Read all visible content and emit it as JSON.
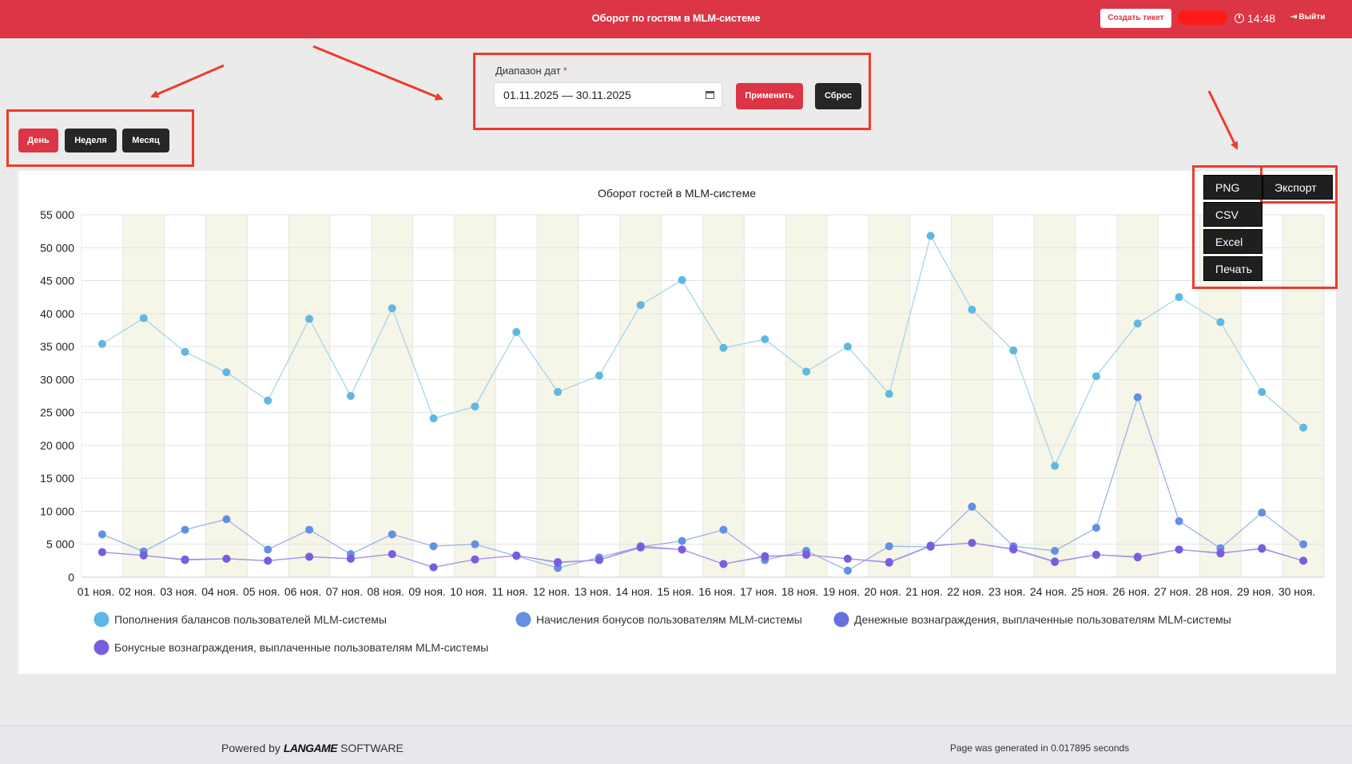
{
  "header": {
    "title": "Оборот по гостям в MLM-системе",
    "ticket_label": "Создать тикет",
    "time": "14:48",
    "logout_label": "Выйти"
  },
  "period": {
    "day_label": "День",
    "week_label": "Неделя",
    "month_label": "Месяц"
  },
  "date_range": {
    "label": "Диапазон дат",
    "required_mark": "*",
    "value": "01.11.2025 — 30.11.2025",
    "apply_label": "Применить",
    "reset_label": "Сброс"
  },
  "export": {
    "png_label": "PNG",
    "export_label": "Экспорт",
    "csv_label": "CSV",
    "excel_label": "Excel",
    "print_label": "Печать"
  },
  "footer": {
    "powered_prefix": "Powered by",
    "brand": "LANGAME",
    "brand_suffix": "SOFTWARE",
    "generated": "Page was generated in 0.017895 seconds"
  },
  "colors": {
    "accent": "#dc3545",
    "annotation": "#ee3b2d",
    "band": "#f5f5e8"
  },
  "chart_data": {
    "type": "line",
    "title": "Оборот гостей в MLM-системе",
    "categories": [
      "01 ноя.",
      "02 ноя.",
      "03 ноя.",
      "04 ноя.",
      "05 ноя.",
      "06 ноя.",
      "07 ноя.",
      "08 ноя.",
      "09 ноя.",
      "10 ноя.",
      "11 ноя.",
      "12 ноя.",
      "13 ноя.",
      "14 ноя.",
      "15 ноя.",
      "16 ноя.",
      "17 ноя.",
      "18 ноя.",
      "19 ноя.",
      "20 ноя.",
      "21 ноя.",
      "22 ноя.",
      "23 ноя.",
      "24 ноя.",
      "25 ноя.",
      "26 ноя.",
      "27 ноя.",
      "28 ноя.",
      "29 ноя.",
      "30 ноя."
    ],
    "ylim": [
      0,
      55000
    ],
    "yticks": [
      "0",
      "5 000",
      "10 000",
      "15 000",
      "20 000",
      "25 000",
      "30 000",
      "35 000",
      "40 000",
      "45 000",
      "50 000",
      "55 000"
    ],
    "grid": true,
    "legend_position": "bottom",
    "series": [
      {
        "name": "Пополнения балансов пользователей MLM-системы",
        "color": "#5fb8e0",
        "line_color": "#9fd3ea",
        "values": [
          35400,
          39300,
          34200,
          31100,
          26800,
          39200,
          27500,
          40800,
          24100,
          25900,
          37200,
          28100,
          30600,
          41300,
          45100,
          34800,
          36100,
          31200,
          35000,
          27800,
          51800,
          40600,
          34400,
          16900,
          30500,
          38500,
          42500,
          38700,
          28100,
          22700
        ]
      },
      {
        "name": "Начисления бонусов пользователям MLM-системы",
        "color": "#6191e0",
        "line_color": "#90b0e8",
        "values": [
          6500,
          3900,
          7200,
          8800,
          4200,
          7200,
          3500,
          6500,
          4700,
          5000,
          3200,
          1400,
          3000,
          4600,
          5500,
          7200,
          2600,
          4000,
          1000,
          4700,
          4600,
          10700,
          4700,
          4000,
          7500,
          27300,
          8500,
          4400,
          9800,
          5000
        ]
      },
      {
        "name": "Денежные вознаграждения, выплаченные пользователям MLM-системы",
        "color": "#6a6ee0",
        "line_color": "#9a9ee8",
        "values": [
          3800,
          3300,
          2700,
          2800,
          2500,
          3100,
          2800,
          3500,
          1500,
          2700,
          3300,
          2300,
          2600,
          4700,
          4200,
          2000,
          3200,
          3400,
          2800,
          2300,
          4800,
          5200,
          4300,
          2400,
          3400,
          3100,
          4200,
          3700,
          4300,
          2500
        ]
      },
      {
        "name": "Бонусные вознаграждения, выплаченные пользователям MLM-системы",
        "color": "#7b5ce0",
        "line_color": "#a98ee8",
        "values": [
          3800,
          3300,
          2600,
          2800,
          2500,
          3100,
          2800,
          3500,
          1500,
          2700,
          3300,
          2200,
          2600,
          4500,
          4200,
          2000,
          3100,
          3400,
          2800,
          2200,
          4700,
          5200,
          4200,
          2300,
          3400,
          3000,
          4200,
          3600,
          4400,
          2500
        ]
      }
    ]
  }
}
